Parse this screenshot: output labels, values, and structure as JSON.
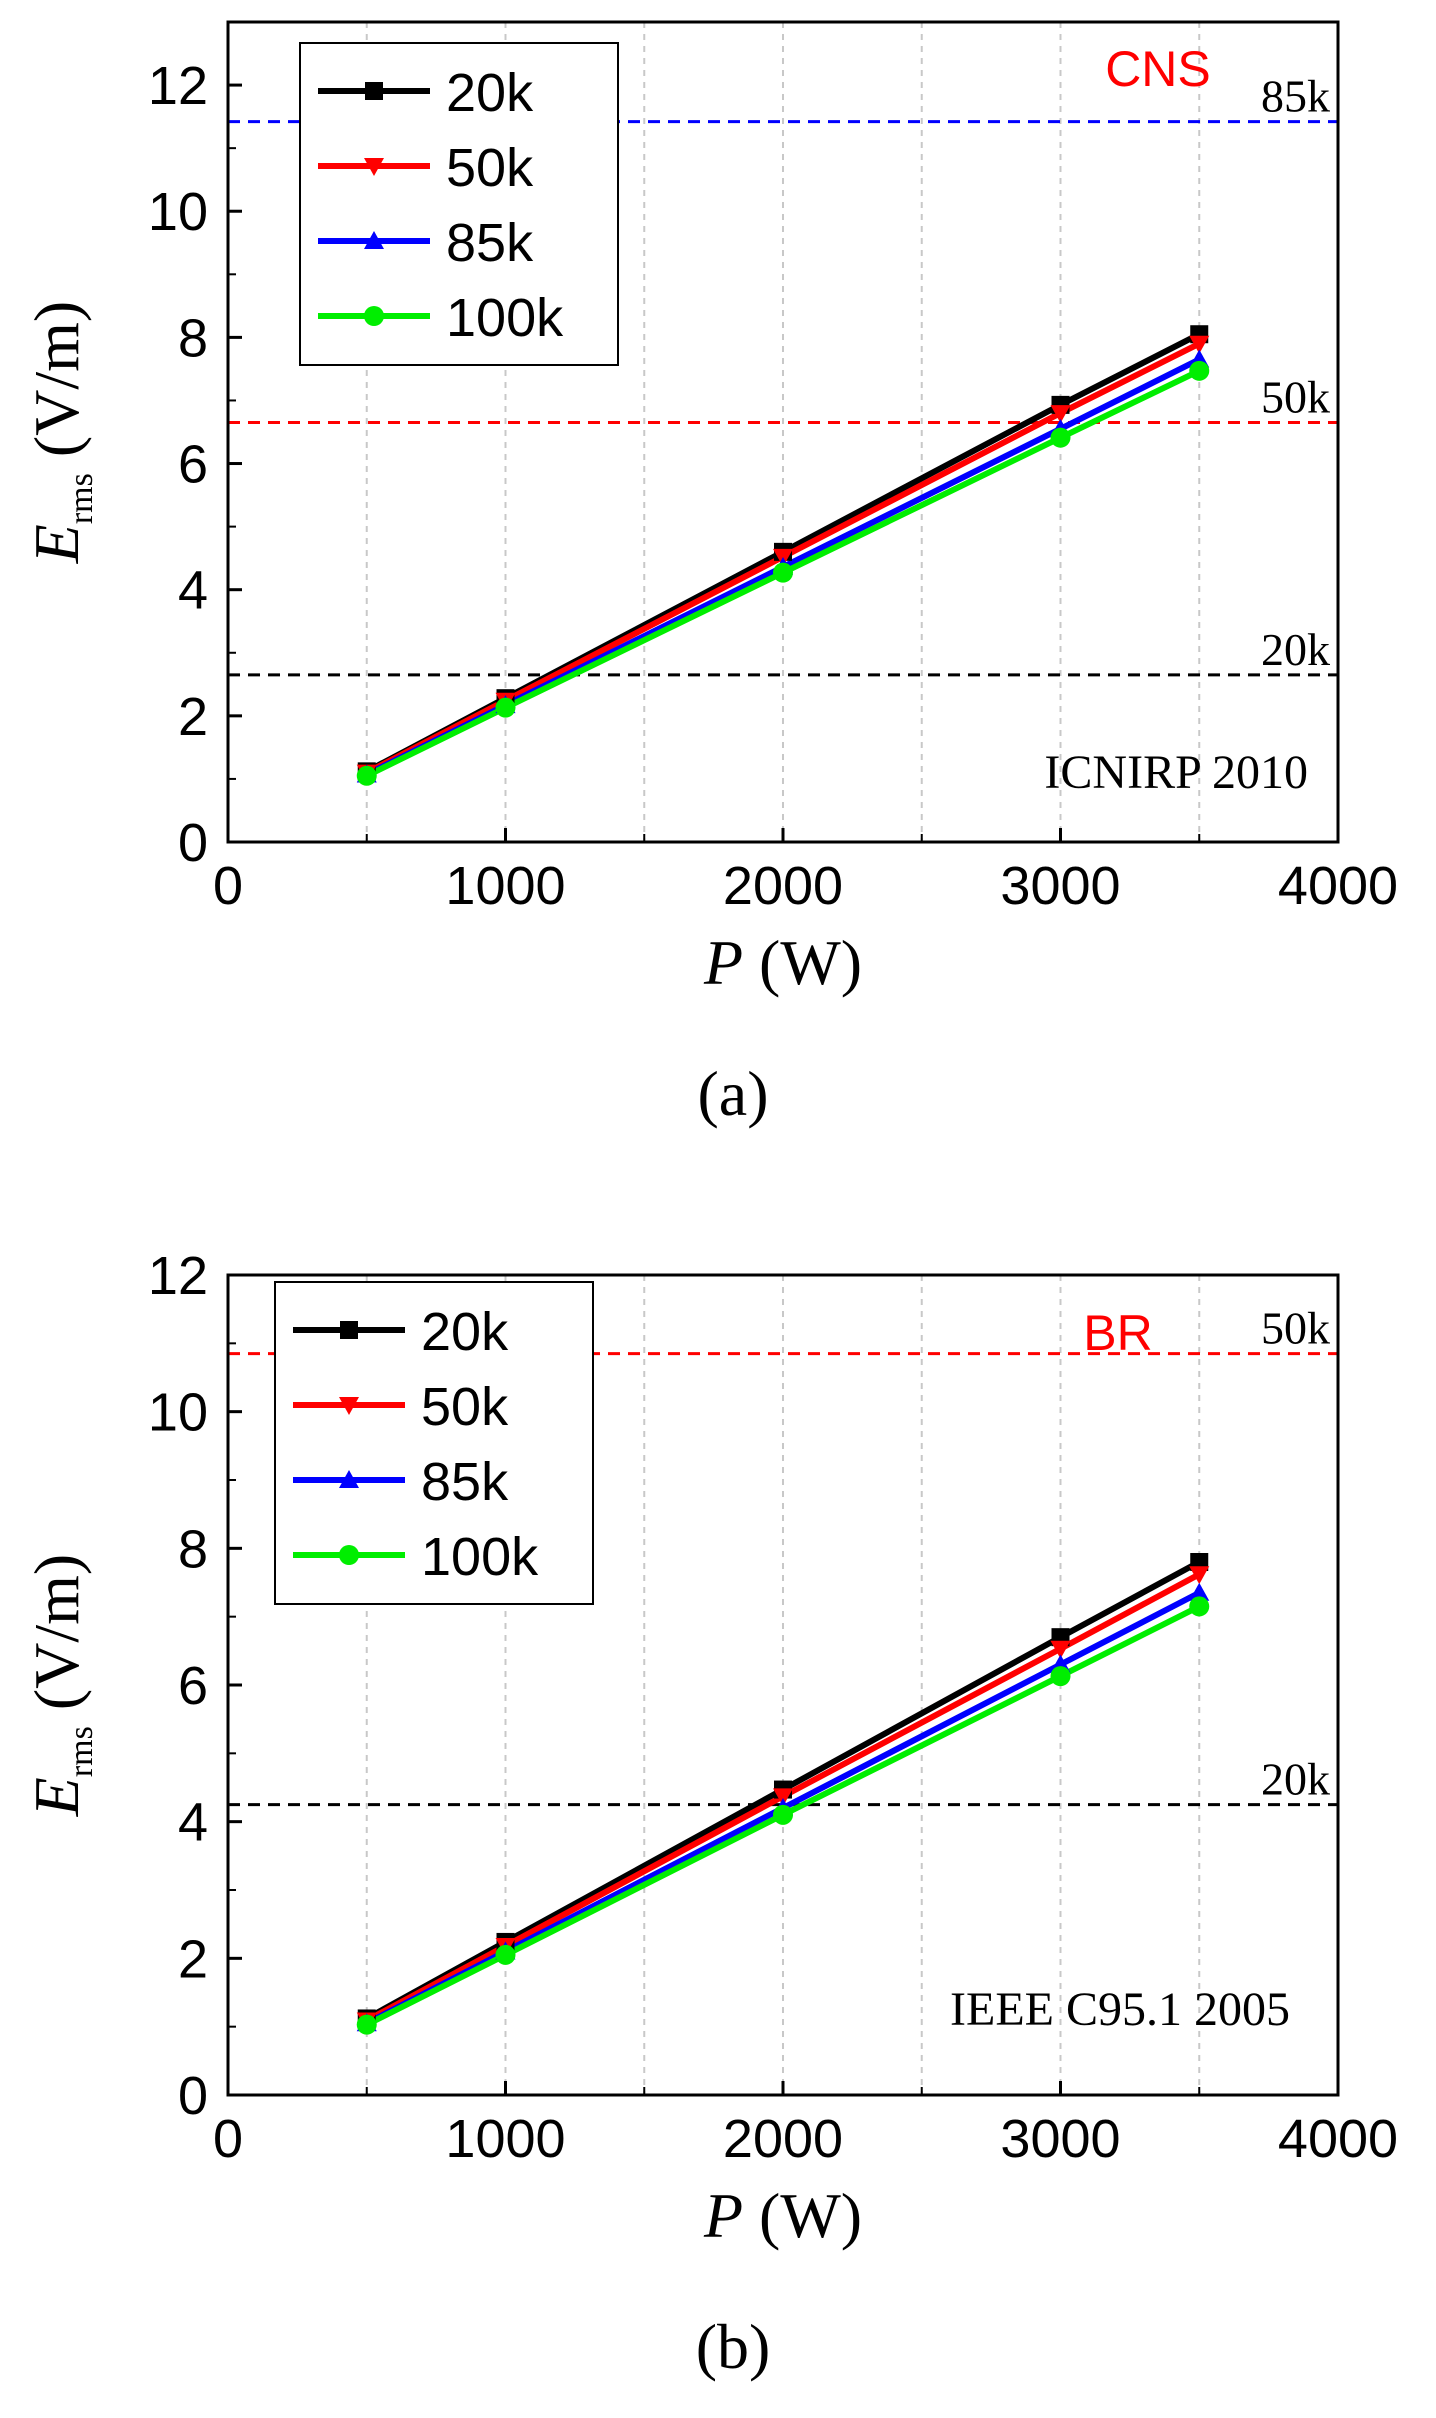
{
  "chart_data": [
    {
      "type": "line",
      "panel": "(a)",
      "x": [
        500,
        1000,
        2000,
        3000,
        3500
      ],
      "series": [
        {
          "name": "20k",
          "color": "#000000",
          "marker": "square",
          "values": [
            1.12,
            2.28,
            4.6,
            6.93,
            8.05
          ]
        },
        {
          "name": "50k",
          "color": "#ff0000",
          "marker": "triangle-down",
          "values": [
            1.1,
            2.24,
            4.52,
            6.8,
            7.9
          ]
        },
        {
          "name": "85k",
          "color": "#0000ff",
          "marker": "triangle-up",
          "values": [
            1.07,
            2.17,
            4.36,
            6.55,
            7.65
          ]
        },
        {
          "name": "100k",
          "color": "#00ee00",
          "marker": "circle",
          "values": [
            1.05,
            2.13,
            4.27,
            6.41,
            7.47
          ]
        }
      ],
      "reference_lines": [
        {
          "label": "85k",
          "value": 11.42,
          "color": "#0000ff"
        },
        {
          "label": "50k",
          "value": 6.65,
          "color": "#ff0000"
        },
        {
          "label": "20k",
          "value": 2.65,
          "color": "#000000"
        }
      ],
      "standard_label": "CNS",
      "standard_color": "#ff0000",
      "annotation": "ICNIRP 2010",
      "xlabel_var": "P",
      "xlabel_unit": "(W)",
      "ylabel_var": "E",
      "ylabel_sub": "rms",
      "ylabel_unit": "(V/m)",
      "xlim": [
        0,
        4000
      ],
      "ylim": [
        0,
        13
      ],
      "xticks": [
        0,
        1000,
        2000,
        3000,
        4000
      ],
      "yticks": [
        0,
        2,
        4,
        6,
        8,
        10,
        12
      ],
      "grid_x": [
        500,
        1000,
        1500,
        2000,
        2500,
        3000,
        3500
      ],
      "legend": "top-left"
    },
    {
      "type": "line",
      "panel": "(b)",
      "x": [
        500,
        1000,
        2000,
        3000,
        3500
      ],
      "series": [
        {
          "name": "20k",
          "color": "#000000",
          "marker": "square",
          "values": [
            1.12,
            2.24,
            4.47,
            6.7,
            7.8
          ]
        },
        {
          "name": "50k",
          "color": "#ff0000",
          "marker": "triangle-down",
          "values": [
            1.09,
            2.18,
            4.37,
            6.53,
            7.62
          ]
        },
        {
          "name": "85k",
          "color": "#0000ff",
          "marker": "triangle-up",
          "values": [
            1.05,
            2.1,
            4.2,
            6.3,
            7.35
          ]
        },
        {
          "name": "100k",
          "color": "#00ee00",
          "marker": "circle",
          "values": [
            1.03,
            2.05,
            4.1,
            6.13,
            7.15
          ]
        }
      ],
      "reference_lines": [
        {
          "label": "50k",
          "value": 10.85,
          "color": "#ff0000"
        },
        {
          "label": "20k",
          "value": 4.25,
          "color": "#000000"
        }
      ],
      "standard_label": "BR",
      "standard_color": "#ff0000",
      "annotation": "IEEE C95.1 2005",
      "xlabel_var": "P",
      "xlabel_unit": "(W)",
      "ylabel_var": "E",
      "ylabel_sub": "rms",
      "ylabel_unit": "(V/m)",
      "xlim": [
        0,
        4000
      ],
      "ylim": [
        0,
        12
      ],
      "xticks": [
        0,
        1000,
        2000,
        3000,
        4000
      ],
      "yticks": [
        0,
        2,
        4,
        6,
        8,
        10,
        12
      ],
      "grid_x": [
        500,
        1000,
        1500,
        2000,
        2500,
        3000,
        3500
      ],
      "legend": "top-left"
    }
  ]
}
